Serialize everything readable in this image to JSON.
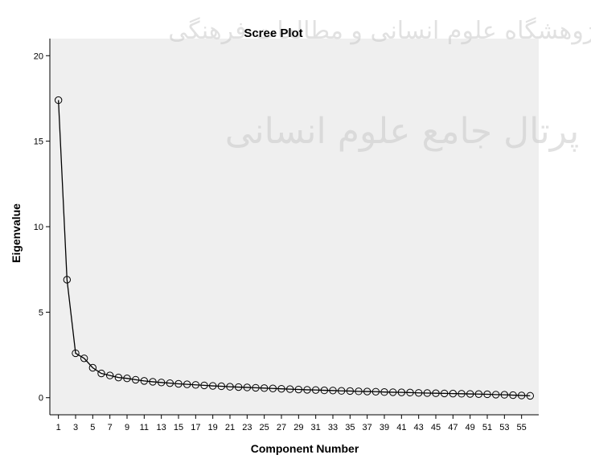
{
  "chart_data": {
    "type": "line",
    "title": "Scree Plot",
    "xlabel": "Component Number",
    "ylabel": "Eigenvalue",
    "ylim": [
      -1,
      21
    ],
    "xlim": [
      0,
      57
    ],
    "yticks": [
      0,
      5,
      10,
      15,
      20
    ],
    "xticks": [
      1,
      3,
      5,
      7,
      9,
      11,
      13,
      15,
      17,
      19,
      21,
      23,
      25,
      27,
      29,
      31,
      33,
      35,
      37,
      39,
      41,
      43,
      45,
      47,
      49,
      51,
      53,
      55
    ],
    "grid": false,
    "markers": "open-circle",
    "colors": {
      "plot_bg": "#efefef",
      "line": "#000000",
      "marker": "#000000"
    },
    "x": [
      1,
      2,
      3,
      4,
      5,
      6,
      7,
      8,
      9,
      10,
      11,
      12,
      13,
      14,
      15,
      16,
      17,
      18,
      19,
      20,
      21,
      22,
      23,
      24,
      25,
      26,
      27,
      28,
      29,
      30,
      31,
      32,
      33,
      34,
      35,
      36,
      37,
      38,
      39,
      40,
      41,
      42,
      43,
      44,
      45,
      46,
      47,
      48,
      49,
      50,
      51,
      52,
      53,
      54,
      55,
      56
    ],
    "values": [
      17.4,
      6.9,
      2.6,
      2.3,
      1.75,
      1.42,
      1.3,
      1.18,
      1.13,
      1.05,
      0.98,
      0.93,
      0.89,
      0.85,
      0.81,
      0.78,
      0.75,
      0.72,
      0.69,
      0.67,
      0.64,
      0.62,
      0.6,
      0.58,
      0.56,
      0.54,
      0.52,
      0.5,
      0.48,
      0.46,
      0.45,
      0.43,
      0.42,
      0.4,
      0.39,
      0.37,
      0.36,
      0.35,
      0.33,
      0.32,
      0.31,
      0.3,
      0.28,
      0.27,
      0.26,
      0.25,
      0.24,
      0.23,
      0.22,
      0.21,
      0.2,
      0.18,
      0.17,
      0.15,
      0.13,
      0.11
    ]
  },
  "watermark": {
    "line1": "پژوهشگاه علوم انسانی و مطالعات فرهنگی",
    "line2": "پرتال جامع علوم انسانی"
  }
}
